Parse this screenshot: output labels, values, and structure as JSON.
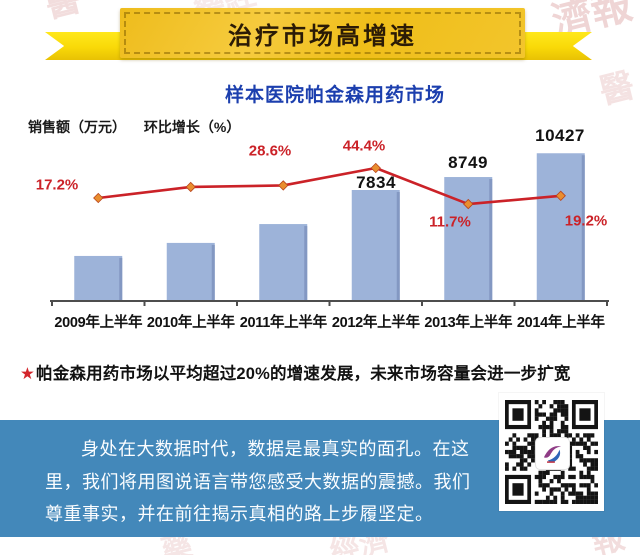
{
  "banner": {
    "title": "治疗市场高增速"
  },
  "subtitle": "样本医院帕金森用药市场",
  "legend": {
    "sales": "销售额（万元）",
    "growth": "环比增长（%）"
  },
  "chart_data": {
    "type": "bar+line",
    "title": "样本医院帕金森用药市场",
    "categories": [
      "2009年上半年",
      "2010年上半年",
      "2011年上半年",
      "2012年上半年",
      "2013年上半年",
      "2014年上半年"
    ],
    "series": [
      {
        "name": "销售额（万元）",
        "type": "bar",
        "color": "#9db3d9",
        "values": [
          3180,
          4100,
          5430,
          7834,
          8749,
          10427
        ],
        "data_labels": [
          "",
          "",
          "",
          "7834",
          "8749",
          "10427"
        ]
      },
      {
        "name": "环比增长（%）",
        "type": "line",
        "color": "#cb2228",
        "values": [
          17.2,
          27.2,
          28.6,
          44.4,
          11.7,
          19.2
        ],
        "data_labels": [
          "17.2%",
          "",
          "28.6%",
          "44.4%",
          "11.7%",
          "19.2%"
        ]
      }
    ],
    "y_left_label": "销售额（万元）",
    "y_right_label": "环比增长（%）",
    "gridlines": false,
    "legend_position": "top-left"
  },
  "note": {
    "star": "★",
    "text": "帕金森用药市场以平均超过20%的增速发展，未来市场容量会进一步扩宽"
  },
  "footer": {
    "lines": [
      "身处在大数据时代，数据是最真实的面孔。在这",
      "里，我们将用图说语言带您感受大数据的震撼。我们",
      "尊重事实，并在前往揭示真相的路上步履坚定。"
    ]
  },
  "decoration": {
    "watermarks": [
      "醫",
      "藥經",
      "濟報",
      "醫",
      "藥",
      "經濟",
      "報"
    ]
  },
  "colors": {
    "bar_fill": "#9db3d9",
    "bar_shade": "#8398c2",
    "line_red": "#cb2228",
    "marker_orange": "#e98e2f",
    "banner_gold": "#f2c01e",
    "ribbon_yellow": "#ffe81c",
    "subtitle_blue": "#1c3fae",
    "footer_blue": "#4388ba",
    "axis_gray": "#4d4d4d"
  }
}
